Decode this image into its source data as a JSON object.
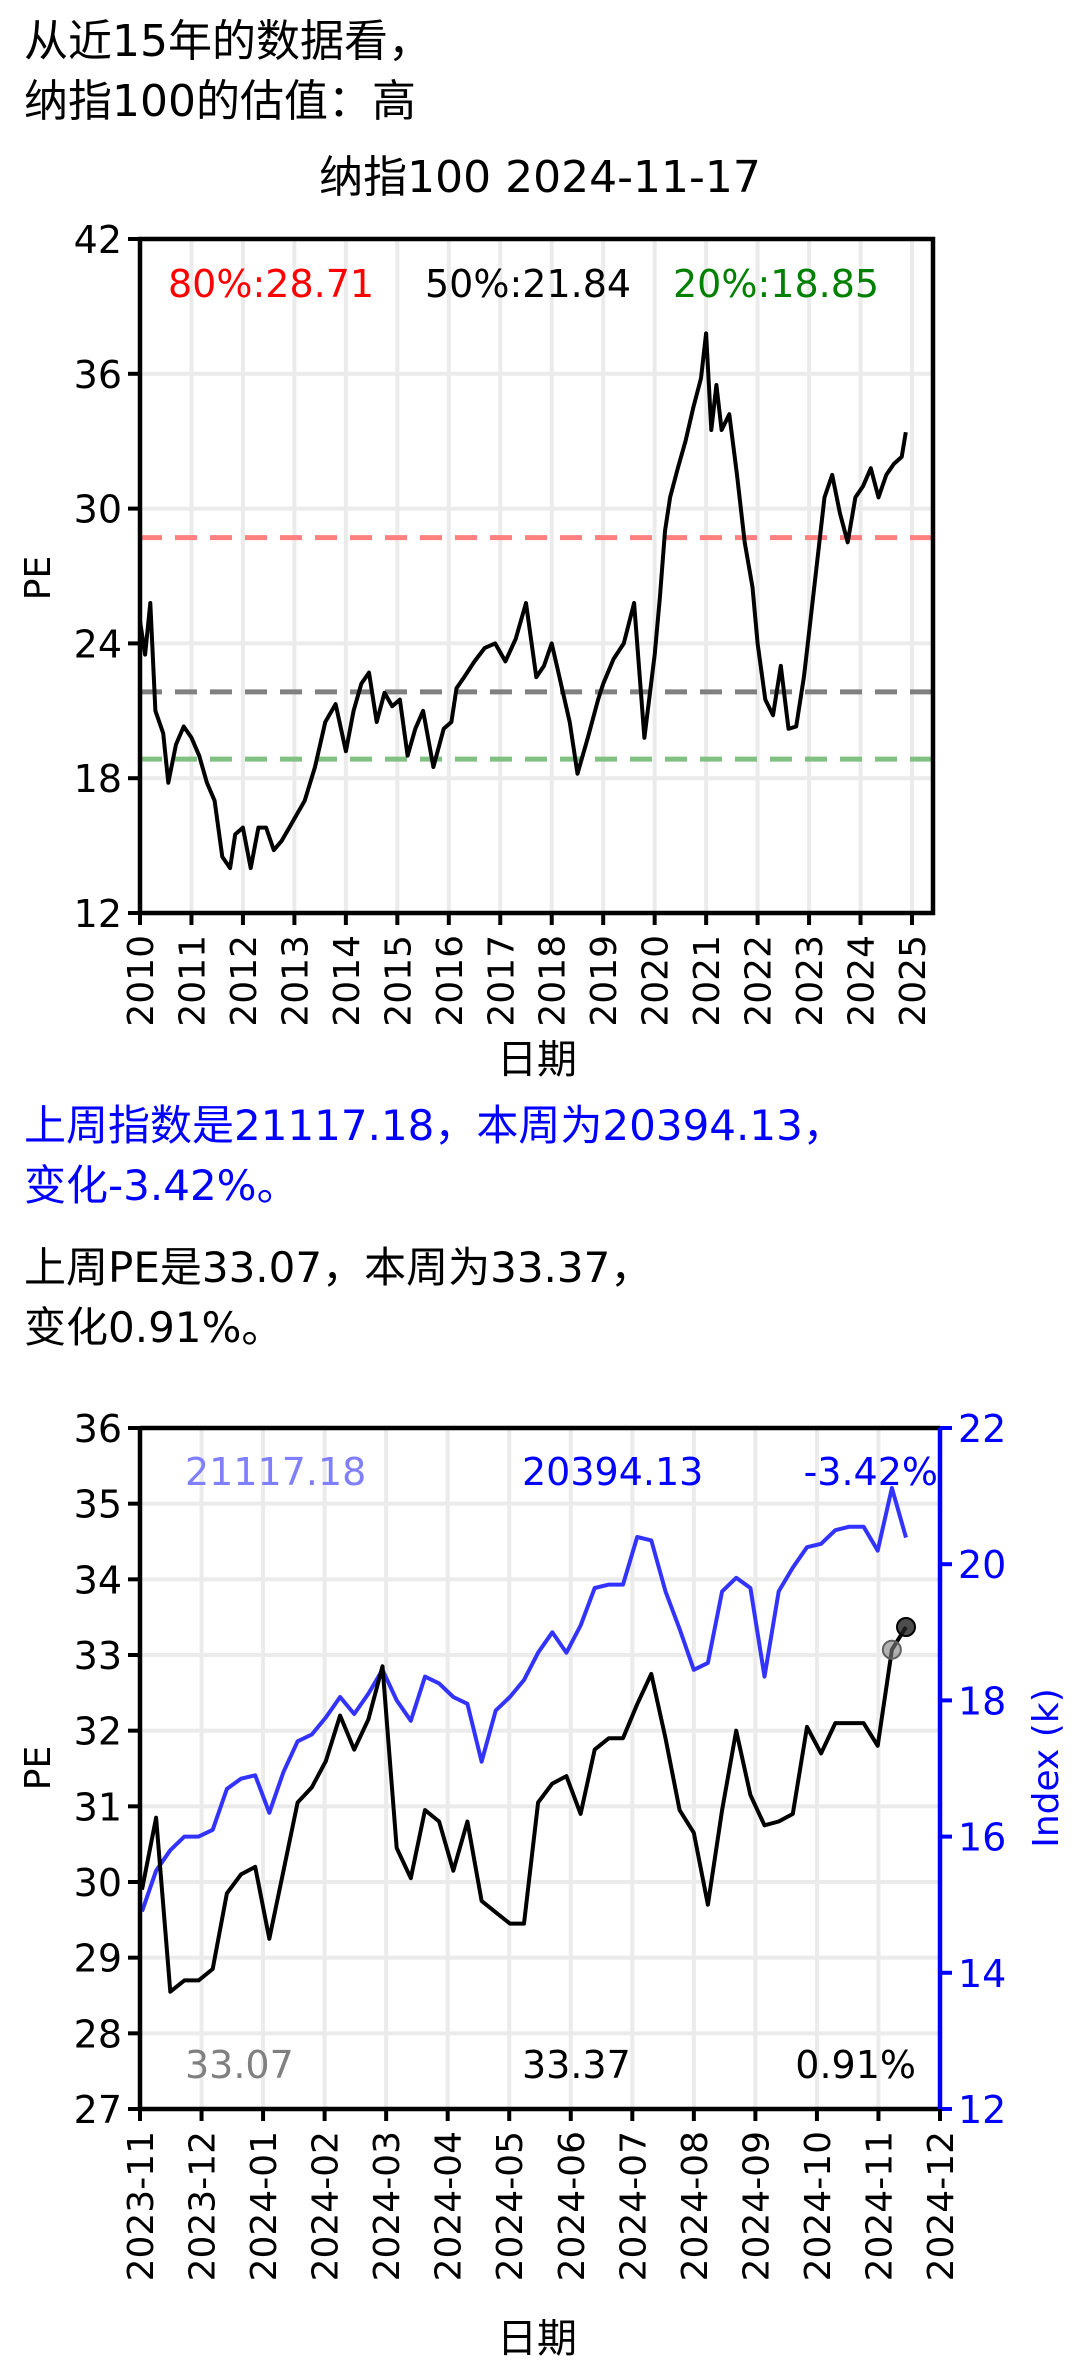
{
  "headline": {
    "line1": "从近15年的数据看，",
    "line2": "纳指100的估值：高"
  },
  "top_chart": {
    "title": "纳指100  2024-11-17",
    "ylabel": "PE",
    "xlabel": "日期",
    "percentiles": {
      "p80_label": "80%:28.71",
      "p50_label": "50%:21.84",
      "p20_label": "20%:18.85"
    }
  },
  "summary": {
    "index_line1": "上周指数是21117.18，本周为20394.13，",
    "index_line2": "变化-3.42%。",
    "pe_line1": "上周PE是33.07，本周为33.37，",
    "pe_line2": "变化0.91%。"
  },
  "bottom_chart": {
    "ylabel_left": "PE",
    "ylabel_right": "Index (k)",
    "xlabel": "日期",
    "annotations": {
      "index_prev": "21117.18",
      "index_curr": "20394.13",
      "index_change": "-3.42%",
      "pe_prev": "33.07",
      "pe_curr": "33.37",
      "pe_change": "0.91%"
    }
  },
  "colors": {
    "p80": "#ff0000",
    "p80_line": "#ff8080",
    "p50_line": "#808080",
    "p20": "#008000",
    "p20_line": "#80c080",
    "index_line": "#3333ff",
    "index_axis": "#0000ff",
    "index_prev_text": "#8080ff",
    "pe_prev_text": "#808080"
  },
  "chart_data": [
    {
      "type": "line",
      "title": "纳指100  2024-11-17",
      "xlabel": "日期",
      "ylabel": "PE",
      "ylim": [
        12,
        42
      ],
      "yticks": [
        12,
        18,
        24,
        30,
        36,
        42
      ],
      "xlim": [
        "2010",
        "2025"
      ],
      "xticks": [
        "2010",
        "2011",
        "2012",
        "2013",
        "2014",
        "2015",
        "2016",
        "2017",
        "2018",
        "2019",
        "2020",
        "2021",
        "2022",
        "2023",
        "2024",
        "2025"
      ],
      "grid": true,
      "hlines": [
        {
          "label": "80%:28.71",
          "value": 28.71,
          "color": "#ff0000",
          "style": "dashed"
        },
        {
          "label": "50%:21.84",
          "value": 21.84,
          "color": "#808080",
          "style": "dashed"
        },
        {
          "label": "20%:18.85",
          "value": 18.85,
          "color": "#008000",
          "style": "dashed"
        }
      ],
      "series": [
        {
          "name": "PE",
          "color": "#000000",
          "x": [
            2010.0,
            2010.1,
            2010.2,
            2010.3,
            2010.45,
            2010.55,
            2010.7,
            2010.85,
            2011.0,
            2011.15,
            2011.3,
            2011.45,
            2011.6,
            2011.75,
            2011.85,
            2012.0,
            2012.15,
            2012.3,
            2012.45,
            2012.6,
            2012.75,
            2012.9,
            2013.0,
            2013.2,
            2013.4,
            2013.6,
            2013.8,
            2014.0,
            2014.15,
            2014.3,
            2014.45,
            2014.6,
            2014.75,
            2014.9,
            2015.05,
            2015.2,
            2015.35,
            2015.5,
            2015.7,
            2015.9,
            2016.05,
            2016.15,
            2016.3,
            2016.5,
            2016.7,
            2016.9,
            2017.1,
            2017.3,
            2017.5,
            2017.7,
            2017.85,
            2018.0,
            2018.1,
            2018.2,
            2018.35,
            2018.5,
            2018.7,
            2018.9,
            2019.0,
            2019.2,
            2019.4,
            2019.6,
            2019.8,
            2020.0,
            2020.1,
            2020.2,
            2020.3,
            2020.45,
            2020.6,
            2020.75,
            2020.9,
            2021.0,
            2021.1,
            2021.2,
            2021.3,
            2021.45,
            2021.6,
            2021.75,
            2021.9,
            2022.0,
            2022.15,
            2022.3,
            2022.45,
            2022.6,
            2022.75,
            2022.9,
            2023.0,
            2023.15,
            2023.3,
            2023.45,
            2023.6,
            2023.75,
            2023.9,
            2024.05,
            2024.2,
            2024.35,
            2024.5,
            2024.65,
            2024.8,
            2024.88
          ],
          "y": [
            25,
            23.5,
            25.8,
            21,
            20,
            17.8,
            19.5,
            20.3,
            19.8,
            19,
            17.8,
            17,
            14.5,
            14,
            15.5,
            15.8,
            14,
            15.8,
            15.8,
            14.8,
            15.2,
            15.8,
            16.2,
            17,
            18.5,
            20.5,
            21.3,
            19.2,
            21,
            22.2,
            22.7,
            20.5,
            21.8,
            21.2,
            21.5,
            19,
            20.2,
            21,
            18.5,
            20.2,
            20.5,
            22,
            22.5,
            23.2,
            23.8,
            24,
            23.2,
            24.2,
            25.8,
            22.5,
            23,
            24,
            23,
            22,
            20.5,
            18.2,
            19.8,
            21.5,
            22.2,
            23.3,
            24,
            25.8,
            19.8,
            23.5,
            26,
            29,
            30.5,
            31.8,
            33,
            34.5,
            35.8,
            37.8,
            33.5,
            35.5,
            33.5,
            34.2,
            31.5,
            28.5,
            26.5,
            24,
            21.5,
            20.8,
            23,
            20.2,
            20.3,
            22.5,
            24.5,
            27.5,
            30.5,
            31.5,
            29.8,
            28.5,
            30.5,
            31,
            31.8,
            30.5,
            31.5,
            32,
            32.3,
            33.4
          ]
        }
      ]
    },
    {
      "type": "line",
      "xlabel": "日期",
      "ylabel": "PE",
      "ylabel_right": "Index (k)",
      "ylim": [
        27,
        36
      ],
      "ylim_right": [
        12,
        22
      ],
      "yticks": [
        27,
        28,
        29,
        30,
        31,
        32,
        33,
        34,
        35,
        36
      ],
      "yticks_right": [
        12,
        14,
        16,
        18,
        20,
        22
      ],
      "xticks": [
        "2023-11",
        "2023-12",
        "2024-01",
        "2024-02",
        "2024-03",
        "2024-04",
        "2024-05",
        "2024-06",
        "2024-07",
        "2024-08",
        "2024-09",
        "2024-10",
        "2024-11",
        "2024-12"
      ],
      "grid": true,
      "annotations": [
        "21117.18",
        "20394.13",
        "-3.42%",
        "33.07",
        "33.37",
        "0.91%"
      ],
      "series": [
        {
          "name": "PE",
          "axis": "left",
          "color": "#000000",
          "values": [
            29.9,
            30.85,
            28.55,
            28.7,
            28.7,
            28.85,
            29.85,
            30.1,
            30.2,
            29.25,
            30.15,
            31.05,
            31.25,
            31.6,
            32.2,
            31.75,
            32.15,
            32.85,
            30.45,
            30.05,
            30.95,
            30.8,
            30.15,
            30.8,
            29.75,
            29.6,
            29.45,
            29.45,
            31.05,
            31.3,
            31.4,
            30.9,
            31.75,
            31.9,
            31.9,
            32.35,
            32.75,
            31.9,
            30.95,
            30.65,
            29.7,
            30.95,
            32.0,
            31.15,
            30.75,
            30.8,
            30.9,
            32.05,
            31.7,
            32.1,
            32.1,
            32.1,
            31.8,
            33.07,
            33.37
          ]
        },
        {
          "name": "Index (k)",
          "axis": "right",
          "color": "#3333ff",
          "values": [
            14.9,
            15.5,
            15.8,
            16.0,
            16.0,
            16.1,
            16.7,
            16.85,
            16.9,
            16.35,
            16.95,
            17.4,
            17.5,
            17.75,
            18.05,
            17.8,
            18.1,
            18.45,
            18.0,
            17.7,
            18.35,
            18.25,
            18.05,
            17.95,
            17.1,
            17.85,
            18.05,
            18.3,
            18.7,
            19.0,
            18.7,
            19.1,
            19.65,
            19.7,
            19.7,
            20.4,
            20.35,
            19.6,
            19.05,
            18.45,
            18.55,
            19.6,
            19.8,
            19.65,
            18.35,
            19.6,
            19.95,
            20.25,
            20.3,
            20.5,
            20.55,
            20.55,
            20.2,
            21.12,
            20.39
          ]
        }
      ]
    }
  ]
}
